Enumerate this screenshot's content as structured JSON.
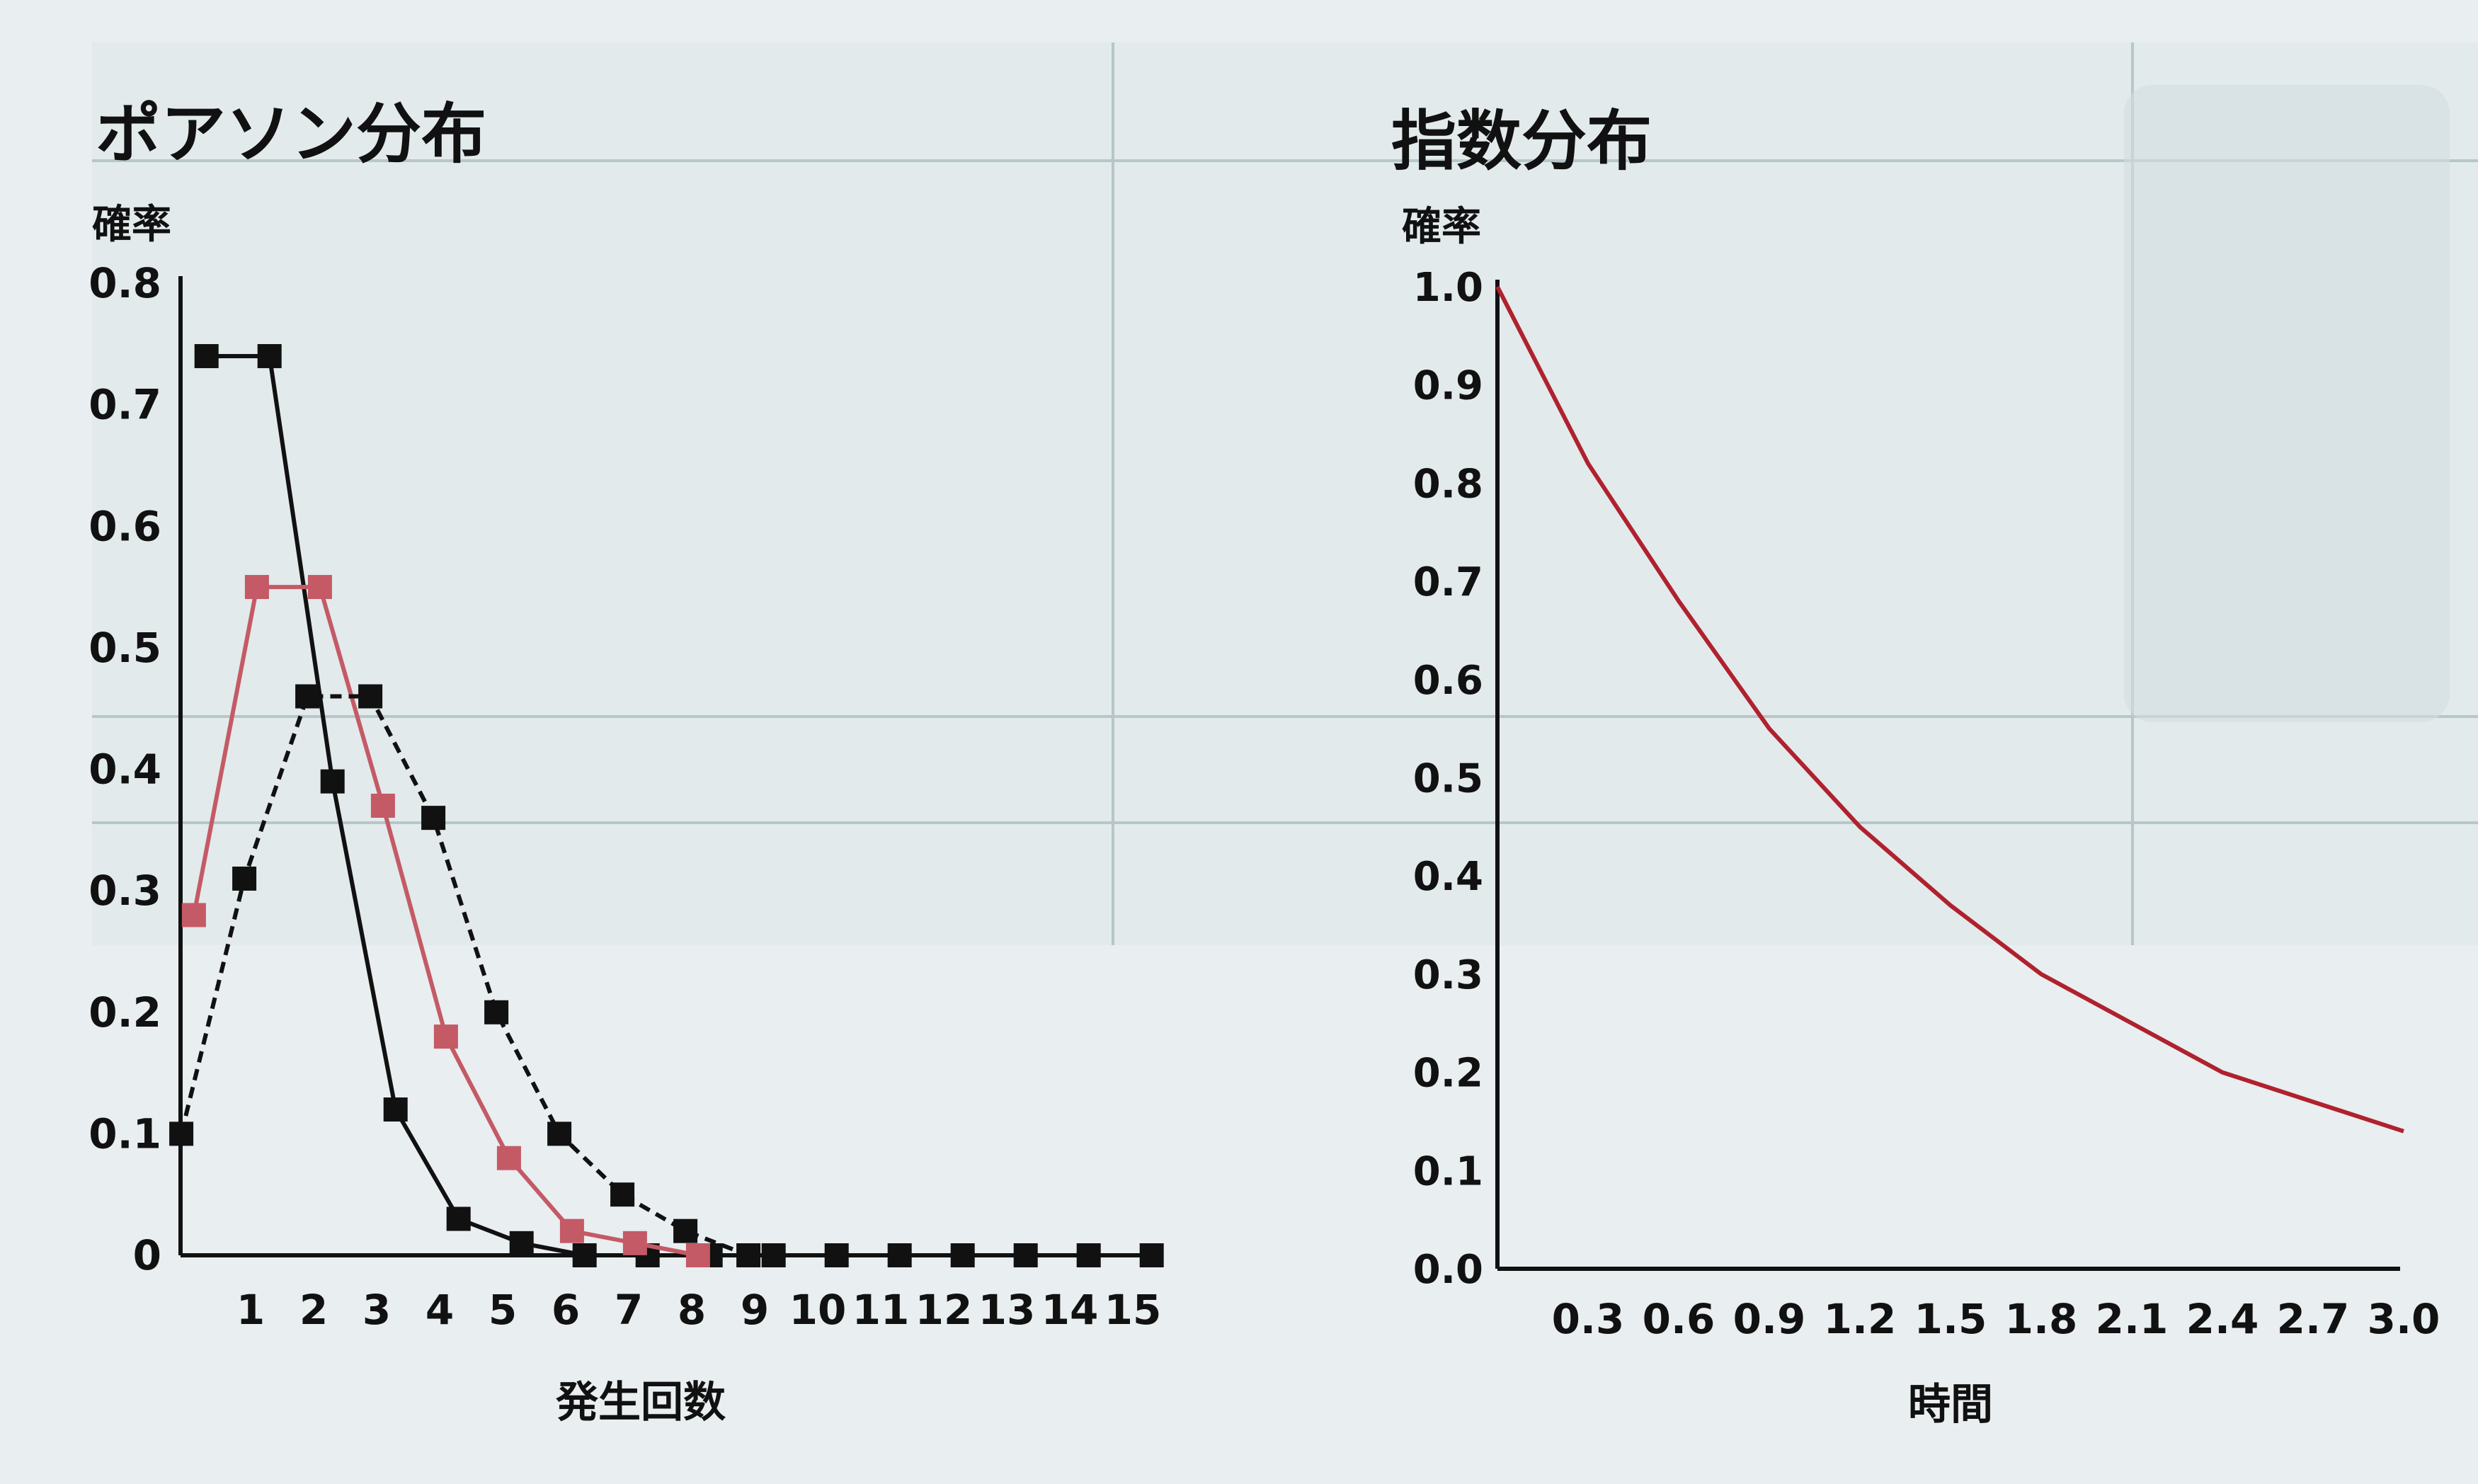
{
  "chart_data": [
    {
      "type": "line",
      "title": "ポアソン分布",
      "ylabel": "確率",
      "xlabel": "発生回数",
      "categories": [
        "",
        "1",
        "2",
        "3",
        "4",
        "5",
        "6",
        "7",
        "8",
        "9",
        "10",
        "11",
        "12",
        "13",
        "14",
        "15"
      ],
      "x": [
        0,
        1,
        2,
        3,
        4,
        5,
        6,
        7,
        8,
        9,
        10,
        11,
        12,
        13,
        14,
        15
      ],
      "yticks": [
        "0",
        "0.1",
        "0.2",
        "0.3",
        "0.4",
        "0.5",
        "0.6",
        "0.7",
        "0.8"
      ],
      "ylim": [
        0,
        0.8
      ],
      "grid": false,
      "series": [
        {
          "style": "solid",
          "color": "#111111",
          "x": [
            0.3,
            1.3,
            2.3,
            3.3,
            4.3,
            5.3,
            6.3,
            7.3,
            8.3,
            9.3,
            10.3,
            11.3,
            12.3,
            13.3,
            14.3,
            15.3
          ],
          "values": [
            0.74,
            0.74,
            0.39,
            0.12,
            0.03,
            0.01,
            0.0,
            0.0,
            0.0,
            0.0,
            0.0,
            0.0,
            0.0,
            0.0,
            0.0,
            0.0
          ]
        },
        {
          "style": "solid",
          "color": "#c45a66",
          "x": [
            0.1,
            1.1,
            2.1,
            3.1,
            4.1,
            5.1,
            6.1,
            7.1,
            8.1
          ],
          "values": [
            0.28,
            0.55,
            0.55,
            0.37,
            0.18,
            0.08,
            0.02,
            0.01,
            0.0
          ]
        },
        {
          "style": "dashed",
          "color": "#111111",
          "x": [
            -0.1,
            0.9,
            1.9,
            2.9,
            3.9,
            4.9,
            5.9,
            6.9,
            7.9,
            8.9
          ],
          "values": [
            0.1,
            0.31,
            0.46,
            0.46,
            0.36,
            0.2,
            0.1,
            0.05,
            0.02,
            0.0
          ]
        }
      ]
    },
    {
      "type": "line",
      "title": "指数分布",
      "ylabel": "確率",
      "xlabel": "時間",
      "categories": [
        "0.3",
        "0.6",
        "0.9",
        "1.2",
        "1.5",
        "1.8",
        "2.1",
        "2.4",
        "2.7",
        "3.0"
      ],
      "yticks": [
        "0.0",
        "0.1",
        "0.2",
        "0.3",
        "0.4",
        "0.5",
        "0.6",
        "0.7",
        "0.8",
        "0.9",
        "1.0"
      ],
      "ylim": [
        0,
        1.0
      ],
      "xlim": [
        0,
        3.0
      ],
      "grid": false,
      "series": [
        {
          "color": "#b0212e",
          "x": [
            0.0,
            0.3,
            0.6,
            0.9,
            1.2,
            1.5,
            1.8,
            2.1,
            2.4,
            2.7,
            3.0
          ],
          "values": [
            1.0,
            0.82,
            0.68,
            0.55,
            0.45,
            0.37,
            0.3,
            0.25,
            0.2,
            0.17,
            0.14
          ]
        }
      ]
    }
  ]
}
